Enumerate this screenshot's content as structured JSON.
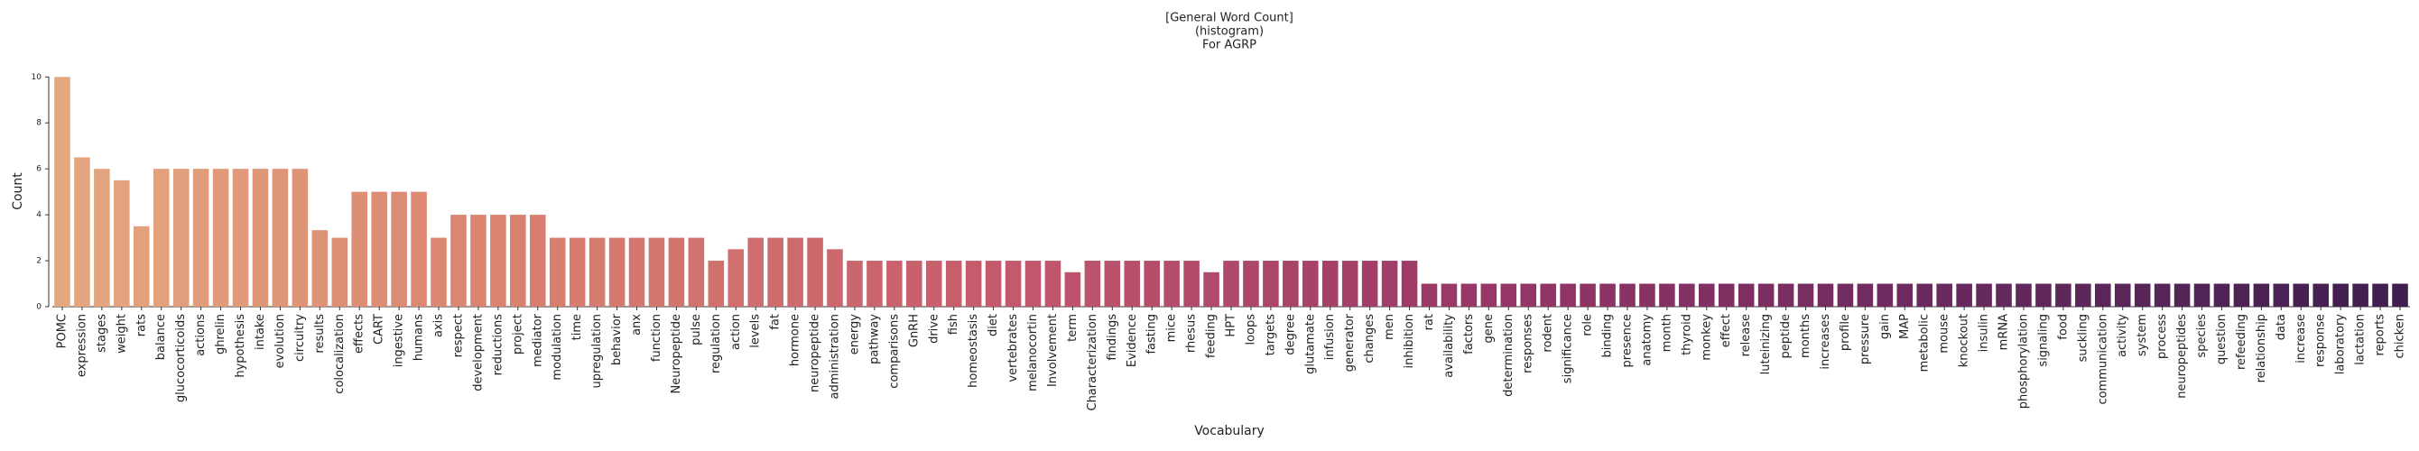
{
  "chart_data": {
    "type": "bar",
    "title": [
      "[General Word Count]",
      "(histogram)",
      "For AGRP"
    ],
    "xlabel": "Vocabulary",
    "ylabel": "Count",
    "categories": [
      "POMC",
      "expression",
      "stages",
      "weight",
      "rats",
      "balance",
      "glucocorticoids",
      "actions",
      "ghrelin",
      "hypothesis",
      "intake",
      "evolution",
      "circuitry",
      "results",
      "colocalization",
      "effects",
      "CART",
      "ingestive",
      "humans",
      "axis",
      "respect",
      "development",
      "reductions",
      "project",
      "mediator",
      "modulation",
      "time",
      "upregulation",
      "behavior",
      "anx",
      "function",
      "Neuropeptide",
      "pulse",
      "regulation",
      "action",
      "levels",
      "fat",
      "hormone",
      "neuropeptide",
      "administration",
      "energy",
      "pathway",
      "comparisons",
      "GnRH",
      "drive",
      "fish",
      "homeostasis",
      "diet",
      "vertebrates",
      "melanocortin",
      "Involvement",
      "term",
      "Characterization",
      "findings",
      "Evidence",
      "fasting",
      "mice",
      "rhesus",
      "feeding",
      "HPT",
      "loops",
      "targets",
      "degree",
      "glutamate",
      "infusion",
      "generator",
      "changes",
      "men",
      "inhibition",
      "rat",
      "availability",
      "factors",
      "gene",
      "determination",
      "responses",
      "rodent",
      "significance",
      "role",
      "binding",
      "presence",
      "anatomy",
      "month",
      "thyroid",
      "monkey",
      "effect",
      "release",
      "luteinizing",
      "peptide",
      "months",
      "increases",
      "profile",
      "pressure",
      "gain",
      "MAP",
      "metabolic",
      "mouse",
      "knockout",
      "insulin",
      "mRNA",
      "phosphorylation",
      "signaling",
      "food",
      "suckling",
      "communication",
      "activity",
      "system",
      "process",
      "neuropeptides",
      "species",
      "question",
      "refeeding",
      "relationship",
      "data",
      "increase",
      "response",
      "laboratory",
      "lactation",
      "reports",
      "chicken"
    ],
    "values": [
      10,
      6.5,
      6,
      5.5,
      3.5,
      6,
      6,
      6,
      6,
      6,
      6,
      6,
      6,
      3.33,
      3,
      5,
      5,
      5,
      5,
      3,
      4,
      4,
      4,
      4,
      4,
      3,
      3,
      3,
      3,
      3,
      3,
      3,
      3,
      2,
      2.5,
      3,
      3,
      3,
      3,
      2.5,
      2,
      2,
      2,
      2,
      2,
      2,
      2,
      2,
      2,
      2,
      2,
      1.5,
      2,
      2,
      2,
      2,
      2,
      2,
      1.5,
      2,
      2,
      2,
      2,
      2,
      2,
      2,
      2,
      2,
      2,
      1,
      1,
      1,
      1,
      1,
      1,
      1,
      1,
      1,
      1,
      1,
      1,
      1,
      1,
      1,
      1,
      1,
      1,
      1,
      1,
      1,
      1,
      1,
      1,
      1,
      1,
      1,
      1,
      1,
      1,
      1,
      1,
      1,
      1,
      1,
      1,
      1,
      1,
      1,
      1,
      1,
      1,
      1,
      1,
      1,
      1,
      1,
      1,
      1,
      1
    ],
    "palette": [
      "#e4a880",
      "#d9806f",
      "#c45a6c",
      "#993767",
      "#6a2a5e",
      "#3f1f4f"
    ],
    "ylim": [
      0,
      10.6
    ],
    "yticks": [
      0,
      2,
      4,
      6,
      8,
      10
    ]
  }
}
